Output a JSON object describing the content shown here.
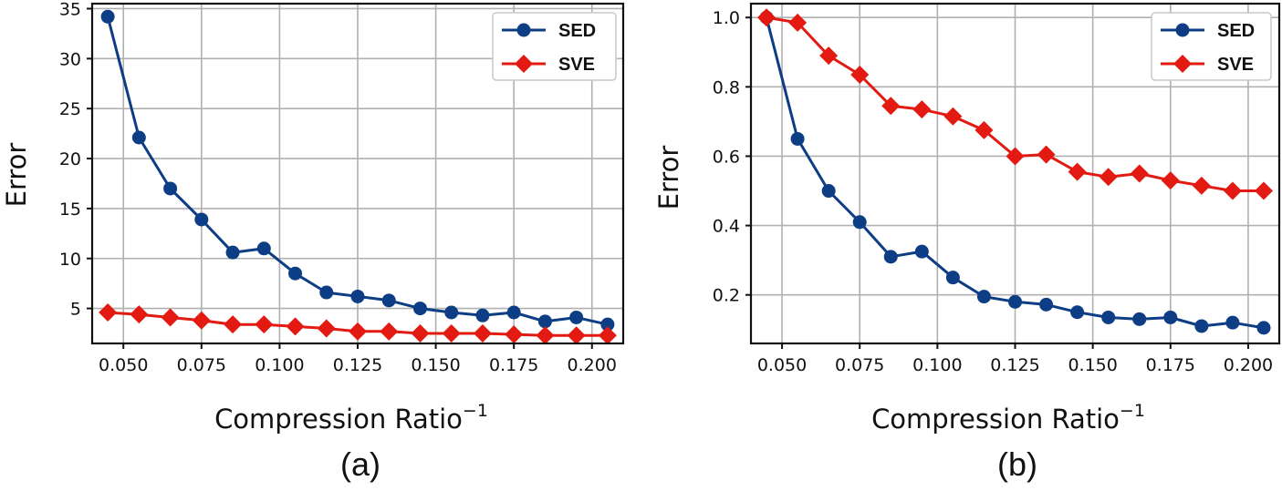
{
  "chart_data": [
    {
      "type": "line",
      "panel_label": "(a)",
      "xlabel": "Compression Ratio",
      "xlabel_sup": "−1",
      "ylabel": "Error",
      "xlim": [
        0.04,
        0.21
      ],
      "ylim": [
        1.5,
        35.5
      ],
      "xticks": [
        0.05,
        0.075,
        0.1,
        0.125,
        0.15,
        0.175,
        0.2
      ],
      "xtick_labels": [
        "0.050",
        "0.075",
        "0.100",
        "0.125",
        "0.150",
        "0.175",
        "0.200"
      ],
      "yticks": [
        5,
        10,
        15,
        20,
        25,
        30,
        35
      ],
      "ytick_labels": [
        "5",
        "10",
        "15",
        "20",
        "25",
        "30",
        "35"
      ],
      "grid": true,
      "legend_position": "top-right",
      "x": [
        0.045,
        0.055,
        0.065,
        0.075,
        0.085,
        0.095,
        0.105,
        0.115,
        0.125,
        0.135,
        0.145,
        0.155,
        0.165,
        0.175,
        0.185,
        0.195,
        0.205
      ],
      "series": [
        {
          "name": "SED",
          "color": "#0d3d84",
          "marker": "circle",
          "values": [
            34.2,
            22.1,
            17.0,
            13.9,
            10.6,
            11.0,
            8.5,
            6.6,
            6.2,
            5.8,
            5.0,
            4.6,
            4.3,
            4.6,
            3.7,
            4.1,
            3.4
          ]
        },
        {
          "name": "SVE",
          "color": "#e31a12",
          "marker": "diamond",
          "values": [
            4.6,
            4.4,
            4.1,
            3.8,
            3.4,
            3.4,
            3.2,
            3.0,
            2.7,
            2.7,
            2.5,
            2.5,
            2.5,
            2.4,
            2.3,
            2.3,
            2.3
          ]
        }
      ]
    },
    {
      "type": "line",
      "panel_label": "(b)",
      "xlabel": "Compression Ratio",
      "xlabel_sup": "−1",
      "ylabel": "Error",
      "xlim": [
        0.04,
        0.21
      ],
      "ylim": [
        0.06,
        1.04
      ],
      "xticks": [
        0.05,
        0.075,
        0.1,
        0.125,
        0.15,
        0.175,
        0.2
      ],
      "xtick_labels": [
        "0.050",
        "0.075",
        "0.100",
        "0.125",
        "0.150",
        "0.175",
        "0.200"
      ],
      "yticks": [
        0.2,
        0.4,
        0.6,
        0.8,
        1.0
      ],
      "ytick_labels": [
        "0.2",
        "0.4",
        "0.6",
        "0.8",
        "1.0"
      ],
      "grid": true,
      "legend_position": "top-right",
      "x": [
        0.045,
        0.055,
        0.065,
        0.075,
        0.085,
        0.095,
        0.105,
        0.115,
        0.125,
        0.135,
        0.145,
        0.155,
        0.165,
        0.175,
        0.185,
        0.195,
        0.205
      ],
      "series": [
        {
          "name": "SED",
          "color": "#0d3d84",
          "marker": "circle",
          "values": [
            1.0,
            0.65,
            0.5,
            0.41,
            0.31,
            0.325,
            0.25,
            0.195,
            0.18,
            0.172,
            0.15,
            0.135,
            0.13,
            0.135,
            0.11,
            0.12,
            0.105
          ]
        },
        {
          "name": "SVE",
          "color": "#e31a12",
          "marker": "diamond",
          "values": [
            1.0,
            0.985,
            0.89,
            0.835,
            0.745,
            0.735,
            0.715,
            0.675,
            0.6,
            0.605,
            0.555,
            0.54,
            0.55,
            0.53,
            0.515,
            0.5,
            0.5
          ]
        }
      ]
    }
  ]
}
